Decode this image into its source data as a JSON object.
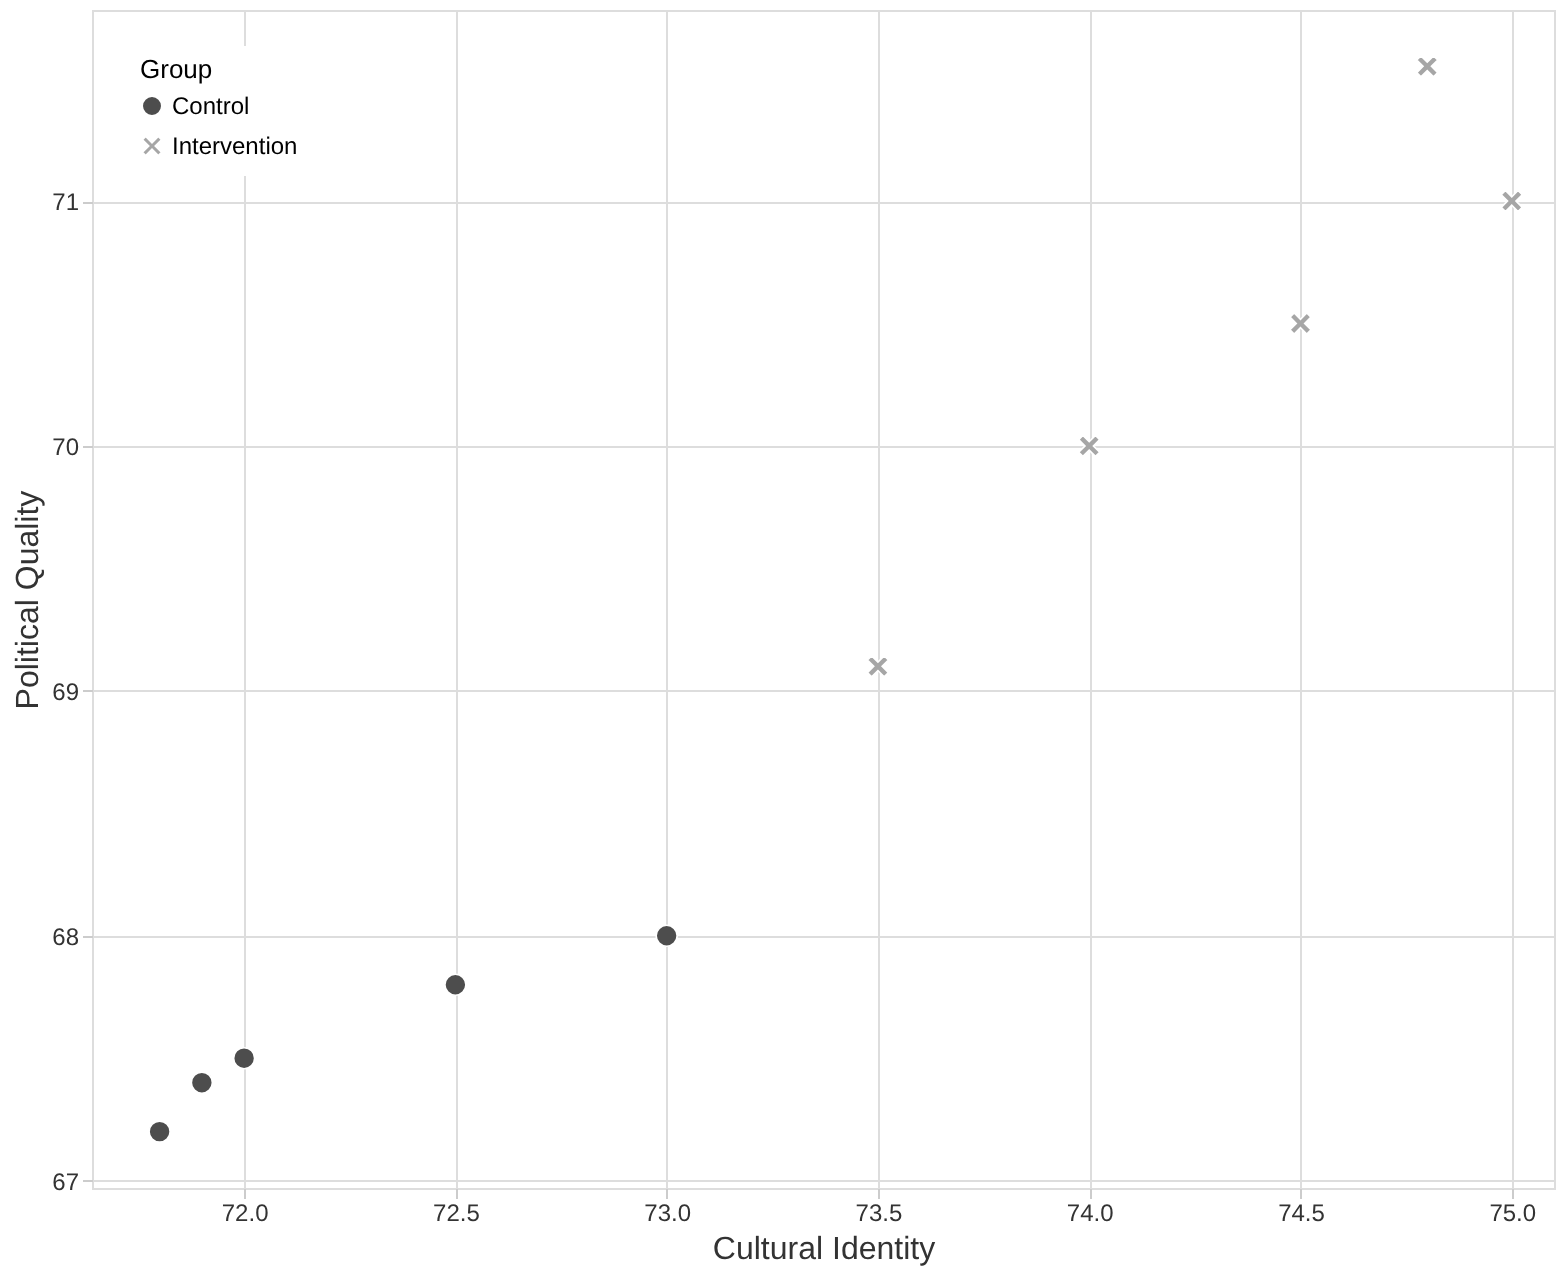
{
  "chart_data": {
    "type": "scatter",
    "xlabel": "Cultural Identity",
    "ylabel": "Political Quality",
    "legend_title": "Group",
    "legend": "top left",
    "grid": true,
    "series": [
      {
        "name": "Control",
        "color": "#4d4d4d",
        "marker": "circle",
        "x": [
          71.8,
          71.9,
          72.0,
          72.5,
          73.0
        ],
        "values": [
          67.2,
          67.4,
          67.5,
          67.8,
          68.0
        ]
      },
      {
        "name": "Intervention",
        "color": "#a6a6a6",
        "marker": "cross",
        "x": [
          73.5,
          74.0,
          74.5,
          74.8,
          75.0
        ],
        "values": [
          69.1,
          70.0,
          70.5,
          71.55,
          71.0
        ]
      }
    ],
    "xlim": [
      71.64,
      75.1
    ],
    "ylim": [
      66.97,
      71.78
    ],
    "xticks": [
      {
        "value": 72,
        "label": "72.0"
      },
      {
        "value": 72.5,
        "label": "72.5"
      },
      {
        "value": 73,
        "label": "73.0"
      },
      {
        "value": 73.5,
        "label": "73.5"
      },
      {
        "value": 74,
        "label": "74.0"
      },
      {
        "value": 74.5,
        "label": "74.5"
      },
      {
        "value": 75,
        "label": "75.0"
      }
    ],
    "yticks": [
      67,
      68,
      69,
      70,
      71
    ]
  }
}
